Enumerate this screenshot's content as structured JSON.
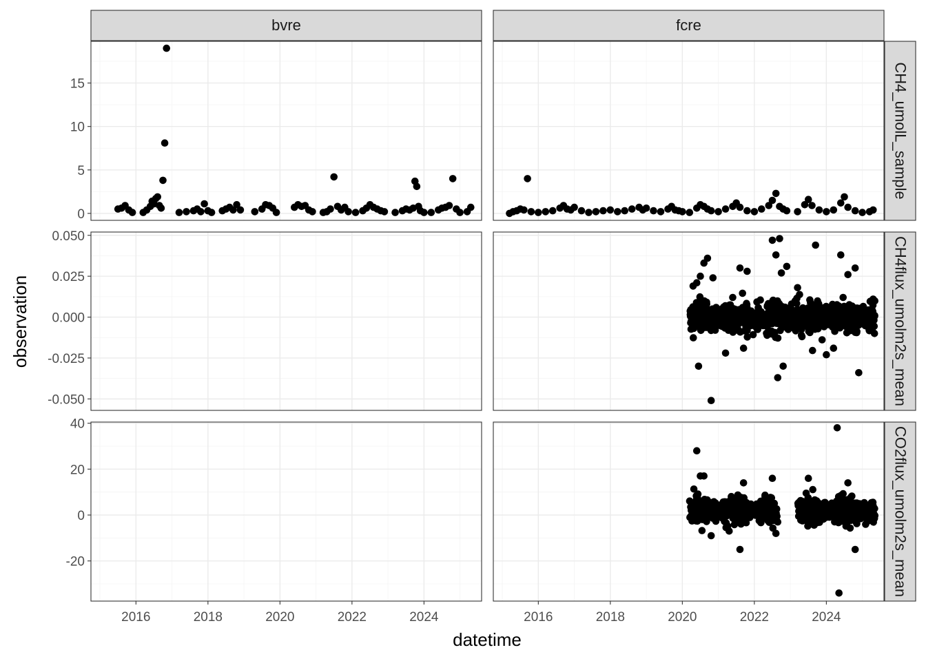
{
  "chart_data": {
    "type": "scatter",
    "xlabel": "datetime",
    "ylabel": "observation",
    "x_ticks": [
      "2016",
      "2018",
      "2020",
      "2022",
      "2024"
    ],
    "x_tick_values": [
      2016,
      2018,
      2020,
      2022,
      2024
    ],
    "xlim": [
      2014.75,
      2025.6
    ],
    "columns": [
      "bvre",
      "fcre"
    ],
    "rows": [
      {
        "label": "CH4_umolL_sample",
        "ylim": [
          -0.8,
          19.8
        ],
        "y_ticks": [
          "0",
          "5",
          "10",
          "15"
        ],
        "y_tick_values": [
          0,
          5,
          10,
          15
        ]
      },
      {
        "label": "CH4flux_umolm2s_mean",
        "ylim": [
          -0.057,
          0.052
        ],
        "y_ticks": [
          "-0.050",
          "-0.025",
          "0.000",
          "0.025",
          "0.050"
        ],
        "y_tick_values": [
          -0.05,
          -0.025,
          0,
          0.025,
          0.05
        ]
      },
      {
        "label": "CO2flux_umolm2s_mean",
        "ylim": [
          -37.5,
          40.5
        ],
        "y_ticks": [
          "-20",
          "0",
          "20",
          "40"
        ],
        "y_tick_values": [
          -20,
          0,
          20,
          40
        ]
      }
    ],
    "panels": [
      {
        "site": "bvre",
        "variable": "CH4_umolL_sample",
        "points": [
          [
            2015.5,
            0.5
          ],
          [
            2015.6,
            0.6
          ],
          [
            2015.7,
            0.9
          ],
          [
            2015.8,
            0.4
          ],
          [
            2015.9,
            0.1
          ],
          [
            2016.2,
            0.1
          ],
          [
            2016.3,
            0.4
          ],
          [
            2016.4,
            0.8
          ],
          [
            2016.45,
            1.4
          ],
          [
            2016.5,
            1.1
          ],
          [
            2016.55,
            1.7
          ],
          [
            2016.6,
            1.9
          ],
          [
            2016.65,
            0.9
          ],
          [
            2016.7,
            0.6
          ],
          [
            2016.75,
            3.8
          ],
          [
            2016.8,
            8.1
          ],
          [
            2016.85,
            19.0
          ],
          [
            2017.2,
            0.1
          ],
          [
            2017.4,
            0.2
          ],
          [
            2017.6,
            0.3
          ],
          [
            2017.7,
            0.5
          ],
          [
            2017.8,
            0.2
          ],
          [
            2017.9,
            1.1
          ],
          [
            2018.0,
            0.3
          ],
          [
            2018.1,
            0.1
          ],
          [
            2018.4,
            0.3
          ],
          [
            2018.5,
            0.5
          ],
          [
            2018.6,
            0.7
          ],
          [
            2018.7,
            0.4
          ],
          [
            2018.8,
            1.0
          ],
          [
            2018.9,
            0.4
          ],
          [
            2019.3,
            0.2
          ],
          [
            2019.5,
            0.5
          ],
          [
            2019.6,
            1.0
          ],
          [
            2019.7,
            0.9
          ],
          [
            2019.8,
            0.6
          ],
          [
            2019.9,
            0.1
          ],
          [
            2020.4,
            0.7
          ],
          [
            2020.5,
            1.0
          ],
          [
            2020.6,
            0.8
          ],
          [
            2020.7,
            0.9
          ],
          [
            2020.8,
            0.4
          ],
          [
            2020.9,
            0.2
          ],
          [
            2021.2,
            0.1
          ],
          [
            2021.3,
            0.2
          ],
          [
            2021.4,
            0.5
          ],
          [
            2021.5,
            4.2
          ],
          [
            2021.6,
            0.8
          ],
          [
            2021.7,
            0.4
          ],
          [
            2021.8,
            0.7
          ],
          [
            2021.9,
            0.2
          ],
          [
            2022.1,
            0.1
          ],
          [
            2022.3,
            0.3
          ],
          [
            2022.4,
            0.6
          ],
          [
            2022.5,
            1.0
          ],
          [
            2022.6,
            0.7
          ],
          [
            2022.7,
            0.5
          ],
          [
            2022.8,
            0.3
          ],
          [
            2022.9,
            0.2
          ],
          [
            2023.2,
            0.1
          ],
          [
            2023.4,
            0.3
          ],
          [
            2023.5,
            0.5
          ],
          [
            2023.6,
            0.4
          ],
          [
            2023.7,
            0.6
          ],
          [
            2023.75,
            3.7
          ],
          [
            2023.8,
            3.1
          ],
          [
            2023.85,
            0.8
          ],
          [
            2023.9,
            0.3
          ],
          [
            2024.0,
            0.1
          ],
          [
            2024.2,
            0.1
          ],
          [
            2024.4,
            0.4
          ],
          [
            2024.5,
            0.6
          ],
          [
            2024.6,
            0.7
          ],
          [
            2024.7,
            0.9
          ],
          [
            2024.8,
            4.0
          ],
          [
            2024.9,
            0.5
          ],
          [
            2025.0,
            0.1
          ],
          [
            2025.2,
            0.2
          ],
          [
            2025.3,
            0.7
          ]
        ]
      },
      {
        "site": "fcre",
        "variable": "CH4_umolL_sample",
        "points": [
          [
            2015.2,
            0.0
          ],
          [
            2015.3,
            0.2
          ],
          [
            2015.4,
            0.3
          ],
          [
            2015.5,
            0.5
          ],
          [
            2015.6,
            0.4
          ],
          [
            2015.7,
            4.0
          ],
          [
            2015.8,
            0.2
          ],
          [
            2016.0,
            0.1
          ],
          [
            2016.2,
            0.2
          ],
          [
            2016.4,
            0.3
          ],
          [
            2016.6,
            0.6
          ],
          [
            2016.7,
            0.9
          ],
          [
            2016.8,
            0.5
          ],
          [
            2016.9,
            0.4
          ],
          [
            2017.0,
            0.7
          ],
          [
            2017.2,
            0.3
          ],
          [
            2017.4,
            0.1
          ],
          [
            2017.6,
            0.2
          ],
          [
            2017.8,
            0.3
          ],
          [
            2018.0,
            0.4
          ],
          [
            2018.2,
            0.2
          ],
          [
            2018.4,
            0.3
          ],
          [
            2018.6,
            0.5
          ],
          [
            2018.8,
            0.7
          ],
          [
            2018.9,
            0.4
          ],
          [
            2019.0,
            0.6
          ],
          [
            2019.2,
            0.3
          ],
          [
            2019.4,
            0.2
          ],
          [
            2019.6,
            0.5
          ],
          [
            2019.7,
            0.8
          ],
          [
            2019.8,
            0.4
          ],
          [
            2019.9,
            0.3
          ],
          [
            2020.0,
            0.2
          ],
          [
            2020.2,
            0.1
          ],
          [
            2020.4,
            0.6
          ],
          [
            2020.5,
            1.0
          ],
          [
            2020.6,
            0.8
          ],
          [
            2020.7,
            0.5
          ],
          [
            2020.8,
            0.3
          ],
          [
            2021.0,
            0.2
          ],
          [
            2021.2,
            0.5
          ],
          [
            2021.4,
            0.8
          ],
          [
            2021.5,
            1.2
          ],
          [
            2021.6,
            0.7
          ],
          [
            2021.8,
            0.3
          ],
          [
            2022.0,
            0.2
          ],
          [
            2022.2,
            0.5
          ],
          [
            2022.4,
            0.9
          ],
          [
            2022.5,
            1.5
          ],
          [
            2022.6,
            2.3
          ],
          [
            2022.7,
            0.8
          ],
          [
            2022.8,
            0.5
          ],
          [
            2022.9,
            0.3
          ],
          [
            2023.2,
            0.2
          ],
          [
            2023.4,
            1.0
          ],
          [
            2023.5,
            1.6
          ],
          [
            2023.6,
            0.9
          ],
          [
            2023.8,
            0.4
          ],
          [
            2024.0,
            0.2
          ],
          [
            2024.2,
            0.4
          ],
          [
            2024.4,
            1.2
          ],
          [
            2024.5,
            1.9
          ],
          [
            2024.6,
            0.7
          ],
          [
            2024.8,
            0.3
          ],
          [
            2025.0,
            0.1
          ],
          [
            2025.2,
            0.2
          ],
          [
            2025.3,
            0.4
          ]
        ]
      },
      {
        "site": "bvre",
        "variable": "CH4flux_umolm2s_mean",
        "points": []
      },
      {
        "site": "fcre",
        "variable": "CH4flux_umolm2s_mean",
        "cluster": {
          "x_range": [
            2020.2,
            2025.35
          ],
          "y_center": 0.0,
          "y_spread": 0.006,
          "n": 900
        },
        "outliers": [
          [
            2020.3,
            0.019
          ],
          [
            2020.4,
            0.021
          ],
          [
            2020.45,
            -0.03
          ],
          [
            2020.5,
            0.025
          ],
          [
            2020.6,
            0.033
          ],
          [
            2020.7,
            0.036
          ],
          [
            2020.8,
            -0.051
          ],
          [
            2020.85,
            0.024
          ],
          [
            2021.2,
            -0.022
          ],
          [
            2021.4,
            0.012
          ],
          [
            2021.6,
            0.03
          ],
          [
            2021.7,
            -0.019
          ],
          [
            2021.8,
            0.028
          ],
          [
            2022.5,
            0.047
          ],
          [
            2022.6,
            0.038
          ],
          [
            2022.65,
            -0.037
          ],
          [
            2022.7,
            0.048
          ],
          [
            2022.75,
            0.027
          ],
          [
            2022.8,
            -0.03
          ],
          [
            2022.9,
            0.031
          ],
          [
            2023.2,
            0.018
          ],
          [
            2023.7,
            0.044
          ],
          [
            2024.0,
            -0.023
          ],
          [
            2024.2,
            -0.019
          ],
          [
            2024.4,
            0.038
          ],
          [
            2024.6,
            0.026
          ],
          [
            2024.8,
            0.03
          ],
          [
            2024.9,
            -0.034
          ],
          [
            2025.3,
            0.011
          ]
        ]
      },
      {
        "site": "bvre",
        "variable": "CO2flux_umolm2s_mean",
        "points": []
      },
      {
        "site": "fcre",
        "variable": "CO2flux_umolm2s_mean",
        "clusters": [
          {
            "x_range": [
              2020.2,
              2022.65
            ],
            "y_center": 2,
            "y_spread": 3.5,
            "n": 450
          },
          {
            "x_range": [
              2023.2,
              2025.35
            ],
            "y_center": 2,
            "y_spread": 3.5,
            "n": 420
          }
        ],
        "outliers": [
          [
            2020.4,
            28
          ],
          [
            2020.5,
            17
          ],
          [
            2020.6,
            17
          ],
          [
            2020.8,
            -9
          ],
          [
            2021.3,
            -7
          ],
          [
            2021.6,
            -15
          ],
          [
            2021.7,
            14
          ],
          [
            2022.5,
            16
          ],
          [
            2022.6,
            -8
          ],
          [
            2023.5,
            16
          ],
          [
            2024.3,
            38
          ],
          [
            2024.35,
            -34
          ],
          [
            2024.6,
            14
          ],
          [
            2024.8,
            -15
          ]
        ]
      }
    ]
  }
}
